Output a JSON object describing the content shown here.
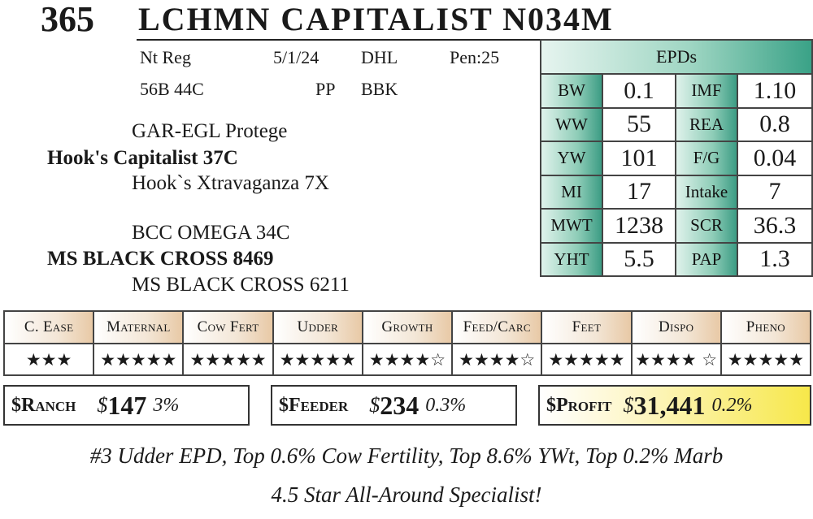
{
  "lot": "365",
  "name": "LCHMN CAPITALIST N034M",
  "info": {
    "reg": "Nt Reg",
    "date": "5/1/24",
    "code1": "DHL",
    "pen": "Pen:25",
    "tattoo": "56B 44C",
    "poll": "PP",
    "code2": "BBK"
  },
  "pedigree": {
    "sire_sire": "GAR-EGL Protege",
    "sire": "Hook's Capitalist 37C",
    "sire_dam": "Hook`s Xtravaganza 7X",
    "dam_sire": "BCC OMEGA 34C",
    "dam": "MS BLACK CROSS 8469",
    "dam_dam": "MS BLACK CROSS 6211"
  },
  "epd": {
    "header": "EPDs",
    "rows": [
      {
        "l1": "BW",
        "v1": "0.1",
        "l2": "IMF",
        "v2": "1.10"
      },
      {
        "l1": "WW",
        "v1": "55",
        "l2": "REA",
        "v2": "0.8"
      },
      {
        "l1": "YW",
        "v1": "101",
        "l2": "F/G",
        "v2": "0.04"
      },
      {
        "l1": "MI",
        "v1": "17",
        "l2": "Intake",
        "v2": "7"
      },
      {
        "l1": "MWT",
        "v1": "1238",
        "l2": "SCR",
        "v2": "36.3"
      },
      {
        "l1": "YHT",
        "v1": "5.5",
        "l2": "PAP",
        "v2": "1.3"
      }
    ]
  },
  "ratings": [
    {
      "category": "C. Ease",
      "stars": "★★★"
    },
    {
      "category": "Maternal",
      "stars": "★★★★★"
    },
    {
      "category": "Cow Fert",
      "stars": "★★★★★"
    },
    {
      "category": "Udder",
      "stars": "★★★★★"
    },
    {
      "category": "Growth",
      "stars": "★★★★☆"
    },
    {
      "category": "Feed/Carc",
      "stars": "★★★★☆"
    },
    {
      "category": "Feet",
      "stars": "★★★★★"
    },
    {
      "category": "Dispo",
      "stars": "★★★★ ☆"
    },
    {
      "category": "Pheno",
      "stars": "★★★★★"
    }
  ],
  "indexes": {
    "ranch": {
      "label": "$Ranch",
      "dollar": "$",
      "value": "147",
      "pct": "3%"
    },
    "feeder": {
      "label": "$Feeder",
      "dollar": "$",
      "value": "234",
      "pct": "0.3%"
    },
    "profit": {
      "label": "$Profit",
      "dollar": "$",
      "value": "31,441",
      "pct": "0.2%"
    }
  },
  "notes": {
    "line1": "#3 Udder EPD, Top 0.6% Cow Fertility, Top 8.6% YWt, Top 0.2% Marb",
    "line2": "4.5 Star All-Around Specialist!"
  },
  "colors": {
    "epd_accent": "#3aa287",
    "rating_accent": "#e8c9a6",
    "profit_accent": "#f7e84a"
  }
}
